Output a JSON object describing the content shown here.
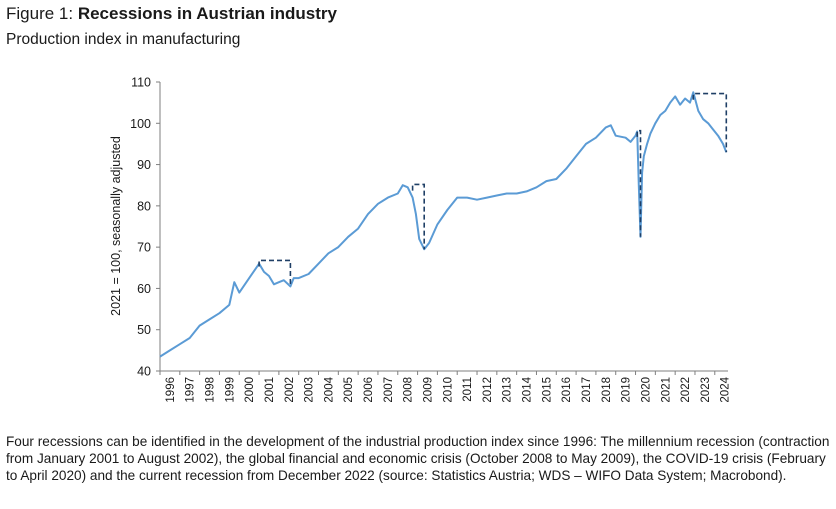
{
  "figure": {
    "label": "Figure 1: ",
    "title": "Recessions in Austrian industry",
    "subtitle": "Production index in manufacturing",
    "caption": "Four recessions can be identified in the development of the industrial production index since 1996: The millennium recession (contraction from January 2001 to August 2002), the global financial and economic crisis (October 2008 to May 2009), the COVID-19 crisis (February to April 2020) and the current recession from December 2022 (source: Statistics Austria; WDS – WIFO Data System; Macrobond)."
  },
  "chart_data": {
    "type": "line",
    "ylabel": "2021 = 100, seasonally adjusted",
    "xlabel": "",
    "ylim": [
      40,
      110
    ],
    "yticks": [
      40,
      50,
      60,
      70,
      80,
      90,
      100,
      110
    ],
    "xlim": [
      "1996-01",
      "2024-08"
    ],
    "xtick_labels": [
      "1996",
      "1997",
      "1998",
      "1999",
      "2000",
      "2001",
      "2002",
      "2003",
      "2004",
      "2005",
      "2006",
      "2007",
      "2008",
      "2009",
      "2010",
      "2011",
      "2012",
      "2013",
      "2014",
      "2015",
      "2016",
      "2017",
      "2018",
      "2019",
      "2020",
      "2021",
      "2022",
      "2023",
      "2024"
    ],
    "grid": false,
    "legend": "none",
    "colors": {
      "series": "#5b9bd5",
      "recession": "#1f3f66"
    },
    "series": [
      {
        "x": [
          "1996-01",
          "1996-07",
          "1997-01",
          "1997-07",
          "1998-01",
          "1998-07",
          "1999-01",
          "1999-07",
          "1999-10",
          "2000-01",
          "2000-07",
          "2001-01",
          "2001-04",
          "2001-07",
          "2001-10",
          "2002-01",
          "2002-04",
          "2002-08",
          "2002-10",
          "2003-01",
          "2003-07",
          "2004-01",
          "2004-07",
          "2005-01",
          "2005-07",
          "2006-01",
          "2006-07",
          "2007-01",
          "2007-07",
          "2008-01",
          "2008-04",
          "2008-07",
          "2008-10",
          "2008-12",
          "2009-02",
          "2009-05",
          "2009-08",
          "2010-01",
          "2010-07",
          "2011-01",
          "2011-07",
          "2012-01",
          "2012-07",
          "2013-01",
          "2013-07",
          "2014-01",
          "2014-07",
          "2015-01",
          "2015-07",
          "2016-01",
          "2016-07",
          "2017-01",
          "2017-07",
          "2018-01",
          "2018-07",
          "2018-10",
          "2019-01",
          "2019-07",
          "2019-10",
          "2020-01",
          "2020-02",
          "2020-03",
          "2020-04",
          "2020-05",
          "2020-06",
          "2020-08",
          "2020-10",
          "2021-01",
          "2021-04",
          "2021-07",
          "2021-10",
          "2022-01",
          "2022-04",
          "2022-07",
          "2022-10",
          "2022-12",
          "2023-03",
          "2023-06",
          "2023-09",
          "2023-12",
          "2024-03",
          "2024-06",
          "2024-08"
        ],
        "values": [
          43.5,
          45,
          46.5,
          48,
          51,
          52.5,
          54,
          56,
          61.5,
          59,
          62.5,
          66,
          64,
          63,
          61,
          61.5,
          62,
          60.5,
          62.5,
          62.5,
          63.5,
          66,
          68.5,
          70,
          72.5,
          74.5,
          78,
          80.5,
          82,
          83,
          85,
          84.5,
          82,
          78,
          72,
          69.5,
          71,
          75.5,
          79,
          82,
          82,
          81.5,
          82,
          82.5,
          83,
          83,
          83.5,
          84.5,
          86,
          86.5,
          89,
          92,
          95,
          96.5,
          99,
          99.5,
          97,
          96.5,
          95.5,
          97,
          98,
          85,
          72.5,
          88,
          92,
          95,
          97.5,
          100,
          102,
          103,
          105,
          106.5,
          104.5,
          106,
          105,
          107.5,
          103,
          101,
          100,
          98.5,
          97,
          95,
          93
        ]
      }
    ],
    "recession_periods": [
      {
        "start": "2001-01",
        "end": "2002-08",
        "peak": 66.8
      },
      {
        "start": "2008-10",
        "end": "2009-05",
        "peak": 85.2
      },
      {
        "start": "2020-02",
        "end": "2020-04",
        "peak": 98.2
      },
      {
        "start": "2022-12",
        "end": "2024-08",
        "peak": 107.2
      }
    ]
  }
}
